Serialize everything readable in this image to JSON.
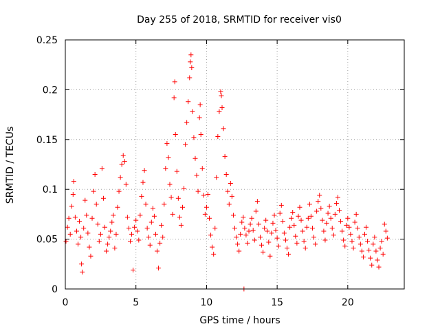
{
  "chart_data": {
    "type": "scatter",
    "title": "Day 255 of 2018, SRMTID for receiver vis0",
    "xlabel": "GPS time / hours",
    "ylabel": "SRMTID / TECUs",
    "xlim": [
      0,
      24
    ],
    "ylim": [
      0,
      0.25
    ],
    "x_ticks": [
      0,
      5,
      10,
      15,
      20
    ],
    "x_tick_labels": [
      "0",
      "5",
      "10",
      "15",
      "20"
    ],
    "y_ticks": [
      0,
      0.05,
      0.1,
      0.15,
      0.2,
      0.25
    ],
    "y_tick_labels": [
      "0",
      "0.05",
      "0.1",
      "0.15",
      "0.2",
      "0.25"
    ],
    "grid": true,
    "marker": "+",
    "color": "#ff0000",
    "series": [
      {
        "name": "vis0",
        "points": [
          [
            0.05,
            0.048
          ],
          [
            0.15,
            0.062
          ],
          [
            0.25,
            0.071
          ],
          [
            0.35,
            0.055
          ],
          [
            0.45,
            0.083
          ],
          [
            0.55,
            0.095
          ],
          [
            0.6,
            0.108
          ],
          [
            0.7,
            0.072
          ],
          [
            0.8,
            0.058
          ],
          [
            0.9,
            0.045
          ],
          [
            1.0,
            0.068
          ],
          [
            1.1,
            0.052
          ],
          [
            1.15,
            0.025
          ],
          [
            1.2,
            0.017
          ],
          [
            1.3,
            0.061
          ],
          [
            1.4,
            0.089
          ],
          [
            1.5,
            0.074
          ],
          [
            1.6,
            0.056
          ],
          [
            1.7,
            0.042
          ],
          [
            1.8,
            0.033
          ],
          [
            1.9,
            0.071
          ],
          [
            2.0,
            0.098
          ],
          [
            2.1,
            0.115
          ],
          [
            2.2,
            0.085
          ],
          [
            2.3,
            0.065
          ],
          [
            2.4,
            0.048
          ],
          [
            2.5,
            0.055
          ],
          [
            2.6,
            0.121
          ],
          [
            2.7,
            0.091
          ],
          [
            2.8,
            0.062
          ],
          [
            2.9,
            0.038
          ],
          [
            3.0,
            0.045
          ],
          [
            3.1,
            0.052
          ],
          [
            3.2,
            0.058
          ],
          [
            3.3,
            0.067
          ],
          [
            3.4,
            0.074
          ],
          [
            3.5,
            0.041
          ],
          [
            3.6,
            0.055
          ],
          [
            3.7,
            0.082
          ],
          [
            3.8,
            0.098
          ],
          [
            3.9,
            0.112
          ],
          [
            4.0,
            0.125
          ],
          [
            4.1,
            0.134
          ],
          [
            4.2,
            0.128
          ],
          [
            4.3,
            0.105
          ],
          [
            4.4,
            0.072
          ],
          [
            4.5,
            0.061
          ],
          [
            4.6,
            0.048
          ],
          [
            4.7,
            0.055
          ],
          [
            4.8,
            0.019
          ],
          [
            4.9,
            0.062
          ],
          [
            5.0,
            0.069
          ],
          [
            5.1,
            0.058
          ],
          [
            5.2,
            0.049
          ],
          [
            5.3,
            0.074
          ],
          [
            5.4,
            0.093
          ],
          [
            5.5,
            0.107
          ],
          [
            5.6,
            0.119
          ],
          [
            5.7,
            0.085
          ],
          [
            5.8,
            0.061
          ],
          [
            5.9,
            0.052
          ],
          [
            6.0,
            0.044
          ],
          [
            6.1,
            0.067
          ],
          [
            6.2,
            0.081
          ],
          [
            6.3,
            0.073
          ],
          [
            6.4,
            0.055
          ],
          [
            6.5,
            0.038
          ],
          [
            6.6,
            0.021
          ],
          [
            6.7,
            0.046
          ],
          [
            6.8,
            0.064
          ],
          [
            6.9,
            0.052
          ],
          [
            7.0,
            0.085
          ],
          [
            7.1,
            0.121
          ],
          [
            7.2,
            0.146
          ],
          [
            7.3,
            0.132
          ],
          [
            7.4,
            0.105
          ],
          [
            7.5,
            0.092
          ],
          [
            7.6,
            0.075
          ],
          [
            7.7,
            0.192
          ],
          [
            7.75,
            0.208
          ],
          [
            7.8,
            0.155
          ],
          [
            7.9,
            0.118
          ],
          [
            8.0,
            0.091
          ],
          [
            8.1,
            0.072
          ],
          [
            8.2,
            0.064
          ],
          [
            8.3,
            0.082
          ],
          [
            8.4,
            0.101
          ],
          [
            8.5,
            0.145
          ],
          [
            8.6,
            0.167
          ],
          [
            8.7,
            0.188
          ],
          [
            8.8,
            0.212
          ],
          [
            8.85,
            0.228
          ],
          [
            8.9,
            0.235
          ],
          [
            8.95,
            0.222
          ],
          [
            9.0,
            0.178
          ],
          [
            9.1,
            0.152
          ],
          [
            9.2,
            0.131
          ],
          [
            9.3,
            0.114
          ],
          [
            9.4,
            0.098
          ],
          [
            9.5,
            0.172
          ],
          [
            9.55,
            0.185
          ],
          [
            9.6,
            0.155
          ],
          [
            9.7,
            0.121
          ],
          [
            9.8,
            0.094
          ],
          [
            9.9,
            0.075
          ],
          [
            10.0,
            0.082
          ],
          [
            10.1,
            0.095
          ],
          [
            10.2,
            0.071
          ],
          [
            10.3,
            0.054
          ],
          [
            10.4,
            0.042
          ],
          [
            10.5,
            0.035
          ],
          [
            10.6,
            0.061
          ],
          [
            10.7,
            0.112
          ],
          [
            10.8,
            0.153
          ],
          [
            10.9,
            0.178
          ],
          [
            11.0,
            0.198
          ],
          [
            11.05,
            0.194
          ],
          [
            11.1,
            0.182
          ],
          [
            11.2,
            0.161
          ],
          [
            11.3,
            0.133
          ],
          [
            11.4,
            0.115
          ],
          [
            11.5,
            0.098
          ],
          [
            11.6,
            0.085
          ],
          [
            11.7,
            0.106
          ],
          [
            11.8,
            0.093
          ],
          [
            11.9,
            0.074
          ],
          [
            12.0,
            0.061
          ],
          [
            12.1,
            0.052
          ],
          [
            12.2,
            0.045
          ],
          [
            12.3,
            0.038
          ],
          [
            12.4,
            0.055
          ],
          [
            12.5,
            0.067
          ],
          [
            12.6,
            0.072
          ],
          [
            12.65,
            0.0
          ],
          [
            12.7,
            0.061
          ],
          [
            12.8,
            0.054
          ],
          [
            12.9,
            0.046
          ],
          [
            13.0,
            0.058
          ],
          [
            13.1,
            0.065
          ],
          [
            13.2,
            0.071
          ],
          [
            13.3,
            0.059
          ],
          [
            13.4,
            0.049
          ],
          [
            13.5,
            0.078
          ],
          [
            13.6,
            0.088
          ],
          [
            13.7,
            0.065
          ],
          [
            13.8,
            0.052
          ],
          [
            13.9,
            0.044
          ],
          [
            14.0,
            0.037
          ],
          [
            14.1,
            0.061
          ],
          [
            14.2,
            0.069
          ],
          [
            14.3,
            0.058
          ],
          [
            14.4,
            0.047
          ],
          [
            14.5,
            0.033
          ],
          [
            14.6,
            0.056
          ],
          [
            14.7,
            0.066
          ],
          [
            14.8,
            0.074
          ],
          [
            14.9,
            0.059
          ],
          [
            15.0,
            0.051
          ],
          [
            15.1,
            0.043
          ],
          [
            15.2,
            0.076
          ],
          [
            15.3,
            0.084
          ],
          [
            15.4,
            0.068
          ],
          [
            15.5,
            0.056
          ],
          [
            15.6,
            0.049
          ],
          [
            15.7,
            0.041
          ],
          [
            15.8,
            0.035
          ],
          [
            15.9,
            0.062
          ],
          [
            16.0,
            0.071
          ],
          [
            16.1,
            0.077
          ],
          [
            16.2,
            0.064
          ],
          [
            16.3,
            0.053
          ],
          [
            16.4,
            0.046
          ],
          [
            16.5,
            0.073
          ],
          [
            16.6,
            0.082
          ],
          [
            16.7,
            0.069
          ],
          [
            16.8,
            0.058
          ],
          [
            16.9,
            0.048
          ],
          [
            17.0,
            0.041
          ],
          [
            17.1,
            0.062
          ],
          [
            17.2,
            0.071
          ],
          [
            17.3,
            0.085
          ],
          [
            17.4,
            0.073
          ],
          [
            17.5,
            0.061
          ],
          [
            17.6,
            0.052
          ],
          [
            17.7,
            0.045
          ],
          [
            17.8,
            0.078
          ],
          [
            17.9,
            0.088
          ],
          [
            18.0,
            0.094
          ],
          [
            18.1,
            0.081
          ],
          [
            18.2,
            0.069
          ],
          [
            18.3,
            0.058
          ],
          [
            18.4,
            0.049
          ],
          [
            18.5,
            0.066
          ],
          [
            18.6,
            0.076
          ],
          [
            18.7,
            0.083
          ],
          [
            18.8,
            0.071
          ],
          [
            18.9,
            0.061
          ],
          [
            19.0,
            0.054
          ],
          [
            19.1,
            0.075
          ],
          [
            19.2,
            0.086
          ],
          [
            19.3,
            0.092
          ],
          [
            19.4,
            0.079
          ],
          [
            19.5,
            0.068
          ],
          [
            19.6,
            0.058
          ],
          [
            19.7,
            0.049
          ],
          [
            19.8,
            0.043
          ],
          [
            19.9,
            0.064
          ],
          [
            20.0,
            0.071
          ],
          [
            20.1,
            0.062
          ],
          [
            20.2,
            0.055
          ],
          [
            20.3,
            0.048
          ],
          [
            20.4,
            0.041
          ],
          [
            20.5,
            0.067
          ],
          [
            20.6,
            0.075
          ],
          [
            20.7,
            0.061
          ],
          [
            20.8,
            0.052
          ],
          [
            20.9,
            0.045
          ],
          [
            21.0,
            0.038
          ],
          [
            21.1,
            0.032
          ],
          [
            21.2,
            0.055
          ],
          [
            21.3,
            0.062
          ],
          [
            21.4,
            0.048
          ],
          [
            21.5,
            0.039
          ],
          [
            21.6,
            0.031
          ],
          [
            21.7,
            0.024
          ],
          [
            21.8,
            0.045
          ],
          [
            21.9,
            0.052
          ],
          [
            22.0,
            0.038
          ],
          [
            22.1,
            0.029
          ],
          [
            22.2,
            0.022
          ],
          [
            22.3,
            0.041
          ],
          [
            22.4,
            0.048
          ],
          [
            22.5,
            0.035
          ],
          [
            22.6,
            0.065
          ],
          [
            22.7,
            0.058
          ],
          [
            22.8,
            0.051
          ]
        ]
      }
    ]
  }
}
